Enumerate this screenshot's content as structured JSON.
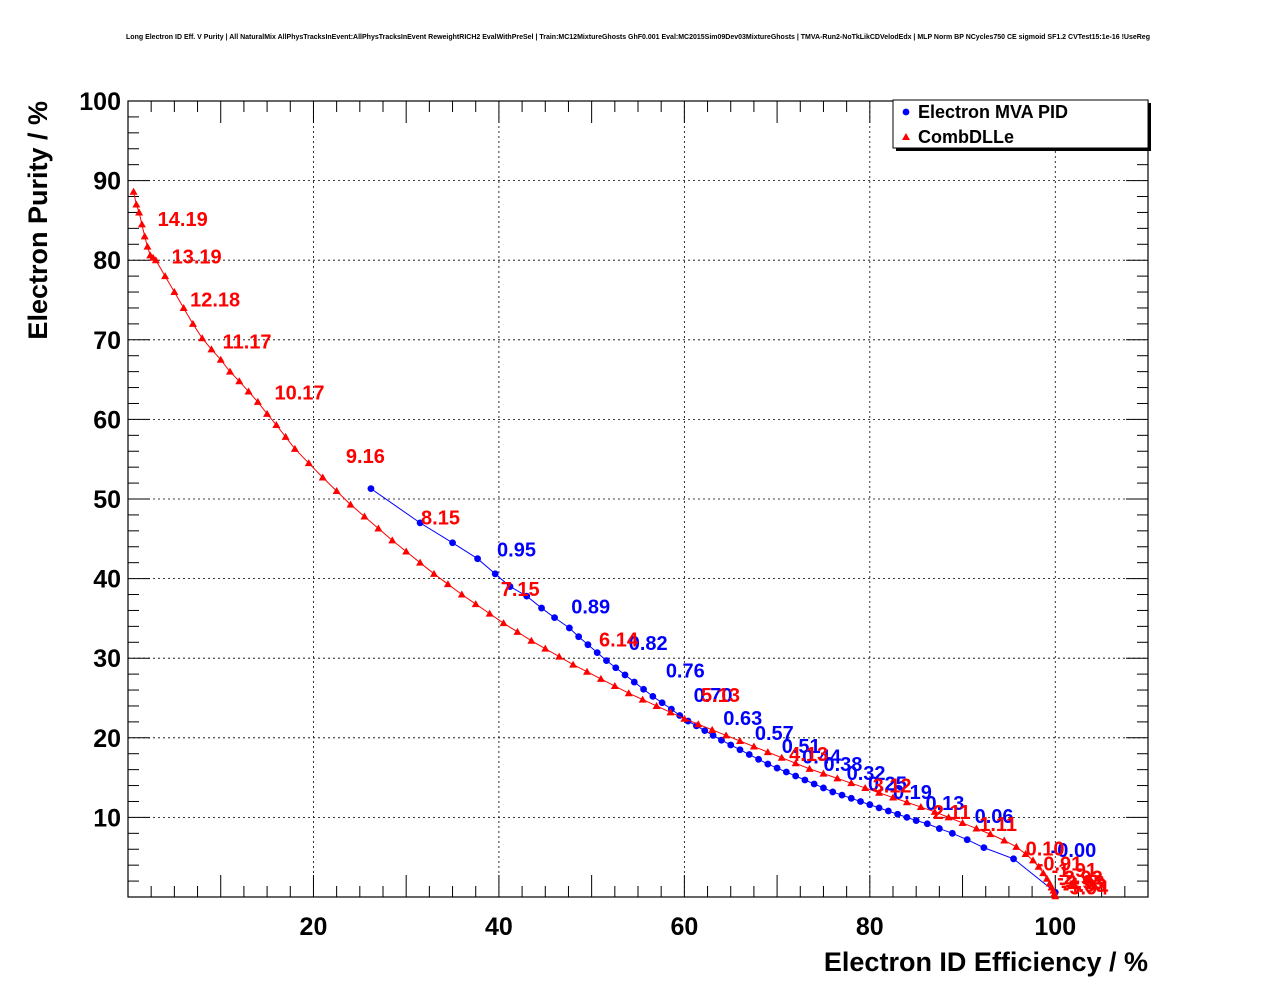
{
  "chart_data": {
    "type": "line",
    "title": "Long Electron ID Eff. V Purity | All NaturalMix AllPhysTracksInEvent:AllPhysTracksInEvent ReweightRICH2 EvalWithPreSel | Train:MC12MixtureGhosts GhF0.001 Eval:MC2015Sim09Dev03MixtureGhosts | TMVA-Run2-NoTkLikCDVelodEdx | MLP Norm BP NCycles750 CE sigmoid SF1.2 CVTest15:1e-16 !UseReg",
    "xlabel": "Electron ID Efficiency / %",
    "ylabel": "Electron Purity / %",
    "xlim": [
      0,
      110
    ],
    "ylim": [
      0,
      100
    ],
    "x_ticks": [
      20,
      40,
      60,
      80,
      100
    ],
    "y_ticks": [
      10,
      20,
      30,
      40,
      50,
      60,
      70,
      80,
      90,
      100
    ],
    "grid": true,
    "legend_position": "top-right",
    "series": [
      {
        "name": "Electron MVA PID",
        "color": "#0000ff",
        "marker": "circle",
        "x": [
          26.2,
          31.5,
          35.0,
          37.7,
          39.6,
          41.2,
          43.0,
          44.6,
          46.0,
          47.6,
          48.6,
          49.6,
          50.6,
          51.6,
          52.6,
          53.6,
          54.6,
          55.6,
          56.6,
          57.6,
          58.6,
          59.5,
          60.4,
          61.3,
          62.2,
          63.1,
          64.0,
          65.0,
          66.0,
          67.0,
          68.0,
          69.0,
          70.0,
          71.0,
          72.0,
          73.0,
          74.0,
          75.0,
          76.0,
          77.0,
          78.0,
          79.0,
          80.0,
          81.0,
          82.0,
          83.0,
          84.0,
          85.0,
          86.2,
          87.5,
          88.9,
          90.5,
          92.3,
          95.5,
          100.0
        ],
        "y": [
          51.3,
          47.0,
          44.5,
          42.5,
          40.6,
          39.0,
          37.8,
          36.3,
          35.1,
          33.8,
          32.7,
          31.7,
          30.7,
          29.7,
          28.8,
          27.9,
          27.0,
          26.1,
          25.2,
          24.4,
          23.6,
          22.8,
          22.1,
          21.5,
          20.9,
          20.3,
          19.7,
          19.1,
          18.5,
          17.9,
          17.3,
          16.7,
          16.2,
          15.7,
          15.2,
          14.7,
          14.2,
          13.7,
          13.2,
          12.8,
          12.4,
          12.0,
          11.6,
          11.2,
          10.8,
          10.4,
          10.0,
          9.6,
          9.2,
          8.6,
          8.0,
          7.2,
          6.2,
          4.8,
          0.6
        ],
        "labels": [
          {
            "text": "0.95",
            "x": 39.8,
            "y": 42.8
          },
          {
            "text": "0.89",
            "x": 47.8,
            "y": 35.6
          },
          {
            "text": "0.82",
            "x": 54.0,
            "y": 31.0
          },
          {
            "text": "0.76",
            "x": 58.0,
            "y": 27.6
          },
          {
            "text": "0.70",
            "x": 61.0,
            "y": 24.5
          },
          {
            "text": "0.63",
            "x": 64.2,
            "y": 21.6
          },
          {
            "text": "0.57",
            "x": 67.6,
            "y": 19.7
          },
          {
            "text": "0.51",
            "x": 70.5,
            "y": 18.1
          },
          {
            "text": "0.44",
            "x": 72.7,
            "y": 16.8
          },
          {
            "text": "0.38",
            "x": 75.0,
            "y": 15.8
          },
          {
            "text": "0.32",
            "x": 77.5,
            "y": 14.7
          },
          {
            "text": "0.25",
            "x": 79.8,
            "y": 13.4
          },
          {
            "text": "0.19",
            "x": 82.5,
            "y": 12.3
          },
          {
            "text": "0.13",
            "x": 86.0,
            "y": 10.9
          },
          {
            "text": "0.06",
            "x": 91.3,
            "y": 9.3
          },
          {
            "text": "-0.00",
            "x": 99.5,
            "y": 5.0
          }
        ]
      },
      {
        "name": "CombDLLe",
        "color": "#ff0000",
        "marker": "triangle",
        "x": [
          0.6,
          0.9,
          1.2,
          1.5,
          1.8,
          2.1,
          2.4,
          2.7,
          3.0,
          4.0,
          5.0,
          6.0,
          7.0,
          8.0,
          9.0,
          10.0,
          11.0,
          12.0,
          13.0,
          14.0,
          15.0,
          16.0,
          17.0,
          18.0,
          19.5,
          21.0,
          22.5,
          24.0,
          25.5,
          27.0,
          28.5,
          30.0,
          31.5,
          33.0,
          34.5,
          36.0,
          37.5,
          39.0,
          40.5,
          42.0,
          43.5,
          45.0,
          46.5,
          48.0,
          49.5,
          51.0,
          52.5,
          54.0,
          55.5,
          57.0,
          58.5,
          60.0,
          61.5,
          63.0,
          64.5,
          66.0,
          67.5,
          69.0,
          70.5,
          72.0,
          73.5,
          75.0,
          76.5,
          78.0,
          79.5,
          81.0,
          82.5,
          84.0,
          85.5,
          87.0,
          88.5,
          90.0,
          91.5,
          93.0,
          94.5,
          95.8,
          96.8,
          97.6,
          98.2,
          98.7,
          99.1,
          99.4,
          99.6,
          99.8,
          99.9,
          100.0
        ],
        "y": [
          88.6,
          87.0,
          86.0,
          84.5,
          83.0,
          81.7,
          80.6,
          80.3,
          80.0,
          78.0,
          76.0,
          74.0,
          72.0,
          70.2,
          68.8,
          67.5,
          66.0,
          64.8,
          63.5,
          62.2,
          60.7,
          59.3,
          57.8,
          56.3,
          54.5,
          52.7,
          51.0,
          49.3,
          47.8,
          46.3,
          44.8,
          43.4,
          42.0,
          40.6,
          39.3,
          38.0,
          36.8,
          35.6,
          34.4,
          33.3,
          32.2,
          31.2,
          30.2,
          29.2,
          28.3,
          27.4,
          26.5,
          25.6,
          24.8,
          24.0,
          23.2,
          22.4,
          21.7,
          21.0,
          20.3,
          19.6,
          18.9,
          18.2,
          17.5,
          16.8,
          16.1,
          15.5,
          14.9,
          14.3,
          13.7,
          13.1,
          12.5,
          11.9,
          11.3,
          10.7,
          10.0,
          9.3,
          8.6,
          7.9,
          7.1,
          6.3,
          5.4,
          4.6,
          3.8,
          3.0,
          2.3,
          1.7,
          1.2,
          0.8,
          0.4,
          0.1
        ],
        "labels": [
          {
            "text": "14.19",
            "x": 3.2,
            "y": 84.3
          },
          {
            "text": "13.19",
            "x": 4.7,
            "y": 79.6
          },
          {
            "text": "12.18",
            "x": 6.7,
            "y": 74.2
          },
          {
            "text": "11.17",
            "x": 10.2,
            "y": 68.9
          },
          {
            "text": "10.17",
            "x": 15.8,
            "y": 62.5
          },
          {
            "text": "9.16",
            "x": 23.5,
            "y": 54.5
          },
          {
            "text": "8.15",
            "x": 31.6,
            "y": 46.8
          },
          {
            "text": "7.15",
            "x": 40.2,
            "y": 37.8
          },
          {
            "text": "6.14",
            "x": 50.8,
            "y": 31.5
          },
          {
            "text": "5.13",
            "x": 61.8,
            "y": 24.5
          },
          {
            "text": "4.13",
            "x": 71.3,
            "y": 17.1
          },
          {
            "text": "3.12",
            "x": 80.3,
            "y": 13.1
          },
          {
            "text": "2.11",
            "x": 86.8,
            "y": 9.8
          },
          {
            "text": "1.11",
            "x": 91.8,
            "y": 8.3
          },
          {
            "text": "0.10",
            "x": 96.8,
            "y": 5.2
          },
          {
            "text": "-0.91",
            "x": 98.0,
            "y": 3.3
          },
          {
            "text": "-1.91",
            "x": 99.6,
            "y": 2.5
          },
          {
            "text": "-2.92",
            "x": 100.2,
            "y": 1.6
          },
          {
            "text": "-3.93",
            "x": 100.4,
            "y": 1.0
          },
          {
            "text": "-4.93",
            "x": 100.6,
            "y": 0.6
          },
          {
            "text": "-5.94",
            "x": 100.8,
            "y": 0.3
          }
        ]
      }
    ]
  }
}
